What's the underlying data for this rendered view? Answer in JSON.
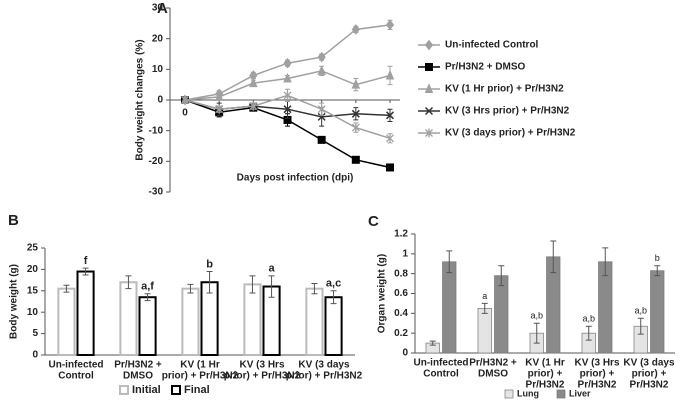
{
  "chart_data": [
    {
      "type": "line",
      "title": "A",
      "ylabel": "Body weight changes (%)",
      "xlabel": "Days post infection (dpi)",
      "categories": [
        "0",
        null,
        null,
        null,
        null,
        null,
        null
      ],
      "ylim": [
        -30,
        30
      ],
      "yticks": [
        -30,
        -20,
        -10,
        0,
        10,
        20,
        30
      ],
      "legend": "right",
      "series": [
        {
          "name": "Un-infected Control",
          "color": "#a0a0a0",
          "marker": "diamond",
          "values": [
            0,
            2,
            8,
            12,
            14,
            23,
            24.5
          ],
          "errors": [
            1,
            1,
            1,
            1,
            1,
            1,
            1.5
          ]
        },
        {
          "name": "Pr/H3N2 + DMSO",
          "color": "#000000",
          "marker": "square",
          "values": [
            0,
            -4,
            -2.5,
            -6.5,
            -13,
            -19.5,
            -22
          ],
          "errors": [
            1,
            1.5,
            1,
            2,
            1,
            0.5,
            1
          ]
        },
        {
          "name": "KV (1 Hr prior) +  Pr/H3N2",
          "color": "#a0a0a0",
          "marker": "triangle",
          "values": [
            0,
            1,
            5.5,
            7,
            9.5,
            5,
            8
          ],
          "errors": [
            1,
            1,
            1,
            1,
            1.5,
            2,
            3
          ]
        },
        {
          "name": "KV (3 Hrs prior) + Pr/H3N2",
          "color": "#333333",
          "marker": "x",
          "values": [
            0,
            -3,
            -2,
            -3,
            -5.5,
            -4.5,
            -5
          ],
          "errors": [
            1,
            2,
            1,
            3,
            3,
            2,
            2
          ]
        },
        {
          "name": "KV (3 days prior) + Pr/H3N2",
          "color": "#a0a0a0",
          "marker": "star",
          "values": [
            0,
            -3,
            -2,
            1.5,
            -3,
            -9,
            -12.5
          ],
          "errors": [
            1,
            1,
            1,
            2,
            2,
            1.5,
            1.5
          ]
        }
      ]
    },
    {
      "type": "bar",
      "title": "B",
      "ylabel": "Body weight (g)",
      "style": "outline",
      "categories": [
        [
          "Un-infected",
          "Control"
        ],
        [
          "Pr/H3N2 +",
          "DMSO"
        ],
        [
          "KV (1 Hr",
          "prior) + Pr/H3N2"
        ],
        [
          "KV (3 Hrs",
          "prior) + Pr/H3N2"
        ],
        [
          "KV (3 days",
          "prior) + Pr/H3N2"
        ]
      ],
      "ylim": [
        0,
        25
      ],
      "yticks": [
        0,
        5,
        10,
        15,
        20,
        25
      ],
      "legend": "bottom",
      "series": [
        {
          "name": "Initial",
          "color": "#bbbbbb",
          "values": [
            15.5,
            17,
            15.5,
            16.5,
            15.5
          ],
          "errors": [
            0.8,
            1.5,
            1,
            2,
            1.2
          ],
          "labels": [
            null,
            null,
            null,
            null,
            null
          ]
        },
        {
          "name": "Final",
          "color": "#000000",
          "values": [
            19.5,
            13.5,
            17,
            16,
            13.5
          ],
          "errors": [
            0.8,
            0.8,
            2.5,
            2.5,
            1.5
          ],
          "labels": [
            "f",
            "a,f",
            "b",
            "a",
            "a,c"
          ]
        }
      ]
    },
    {
      "type": "bar",
      "title": "C",
      "ylabel": "Organ weight (g)",
      "style": "filled",
      "categories": [
        [
          "Un-infected",
          "Control"
        ],
        [
          "Pr/H3N2 +",
          "DMSO"
        ],
        [
          "KV (1 Hr",
          "prior) +",
          "Pr/H3N2"
        ],
        [
          "KV (3 Hrs",
          "prior) +",
          "Pr/H3N2"
        ],
        [
          "KV (3 days",
          "prior) +",
          "Pr/H3N2"
        ]
      ],
      "ylim": [
        0,
        1.2
      ],
      "yticks": [
        0,
        0.2,
        0.4,
        0.6,
        0.8,
        1,
        1.2
      ],
      "legend": "bottom",
      "series": [
        {
          "name": "Lung",
          "color": "#e4e4e4",
          "values": [
            0.1,
            0.45,
            0.2,
            0.2,
            0.27
          ],
          "errors": [
            0.02,
            0.05,
            0.1,
            0.07,
            0.08
          ],
          "labels": [
            null,
            "a",
            "a,b",
            "a,b",
            "a,b"
          ]
        },
        {
          "name": "Liver",
          "color": "#8a8a8a",
          "values": [
            0.92,
            0.78,
            0.97,
            0.92,
            0.83
          ],
          "errors": [
            0.11,
            0.1,
            0.16,
            0.14,
            0.05
          ],
          "labels": [
            null,
            null,
            null,
            null,
            "b"
          ]
        }
      ]
    }
  ]
}
